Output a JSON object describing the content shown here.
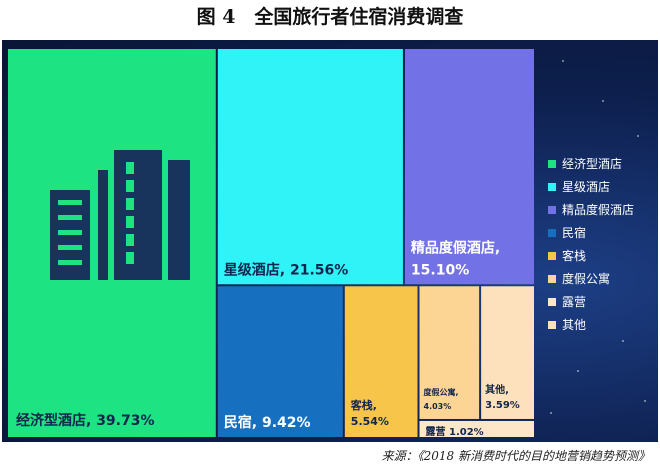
{
  "figure_title": "图 4　全国旅行者住宿消费调查",
  "source": "来源：《2018 新消费时代的目的地营销趋势预测》",
  "icon": "building-icon",
  "chart_data": {
    "type": "treemap",
    "title": "",
    "legend_position": "right",
    "series": [
      {
        "name": "经济型酒店",
        "label": "经济型酒店, 39.73%",
        "value": 39.73,
        "color": "#1de382"
      },
      {
        "name": "星级酒店",
        "label": "星级酒店, 21.56%",
        "value": 21.56,
        "color": "#2ff3f7"
      },
      {
        "name": "精品度假酒店",
        "label": "精品度假酒店, 15.10%",
        "value": 15.1,
        "color": "#7272e6"
      },
      {
        "name": "民宿",
        "label": "民宿, 9.42%",
        "value": 9.42,
        "color": "#176fc0"
      },
      {
        "name": "客栈",
        "label": "客栈, 5.54%",
        "value": 5.54,
        "color": "#f8c54b"
      },
      {
        "name": "度假公寓",
        "label": "度假公寓, 4.03%",
        "value": 4.03,
        "color": "#fcd594"
      },
      {
        "name": "其他",
        "label": "其他, 3.59%",
        "value": 3.59,
        "color": "#fde0bc"
      },
      {
        "name": "露营",
        "label": "露营 1.02%",
        "value": 1.02,
        "color": "#fde7c8"
      }
    ],
    "legend_order": [
      "经济型酒店",
      "星级酒店",
      "精品度假酒店",
      "民宿",
      "客栈",
      "度假公寓",
      "露营",
      "其他"
    ]
  }
}
